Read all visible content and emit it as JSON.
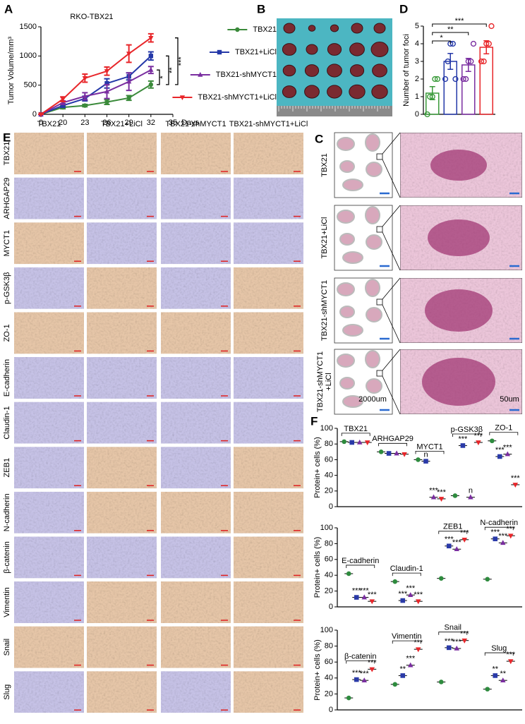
{
  "panel_labels": {
    "a": "A",
    "b": "B",
    "c": "C",
    "d": "D",
    "e": "E",
    "f": "F"
  },
  "chart_data": [
    {
      "type": "line",
      "title": "RKO-TBX21",
      "ylabel": "Tumor Volume/mm³",
      "xlabel": "Days",
      "x": [
        0,
        20,
        23,
        26,
        29,
        32
      ],
      "xlim": [
        0,
        35
      ],
      "xticks": [
        0,
        20,
        23,
        26,
        29,
        32,
        35
      ],
      "ylim": [
        0,
        1500
      ],
      "yticks": [
        0,
        500,
        1000,
        1500
      ],
      "series": [
        {
          "name": "TBX21",
          "color": "#3a8a3a",
          "marker": "circle",
          "values": [
            0,
            120,
            150,
            210,
            280,
            510
          ],
          "errors": [
            0,
            25,
            20,
            40,
            40,
            60
          ]
        },
        {
          "name": "TBX21+LiCl",
          "color": "#2438a8",
          "marker": "square",
          "values": [
            0,
            150,
            270,
            530,
            650,
            1000
          ],
          "errors": [
            0,
            30,
            40,
            80,
            60,
            70
          ]
        },
        {
          "name": "TBX21-shMYCT1",
          "color": "#7a2ea0",
          "marker": "triangle",
          "values": [
            0,
            200,
            310,
            390,
            560,
            760
          ],
          "errors": [
            0,
            30,
            60,
            120,
            150,
            60
          ]
        },
        {
          "name": "TBX21-shMYCT1+LiCl",
          "color": "#e8262a",
          "marker": "triangle-down",
          "values": [
            0,
            260,
            620,
            740,
            1040,
            1310
          ],
          "errors": [
            0,
            40,
            70,
            70,
            150,
            70
          ]
        }
      ],
      "annotations": [
        "*",
        "**",
        "***"
      ]
    },
    {
      "type": "bar",
      "ylabel": "Number of tumor foci",
      "ylim": [
        0,
        5
      ],
      "yticks": [
        0,
        1,
        2,
        3,
        4,
        5
      ],
      "categories": [
        null,
        null,
        null,
        null
      ],
      "values": [
        1.2,
        3.0,
        2.8,
        3.8
      ],
      "errors": [
        0.37,
        0.45,
        0.37,
        0.37
      ],
      "colors": [
        "#3a9a3a",
        "#2438a8",
        "#7a2ea0",
        "#e8262a"
      ],
      "points": [
        [
          0,
          1,
          1,
          2,
          2
        ],
        [
          2,
          3,
          4,
          4,
          2
        ],
        [
          2,
          2,
          3,
          3,
          4
        ],
        [
          3,
          3,
          4,
          4,
          5
        ]
      ],
      "annotations": [
        "*",
        "**",
        "***"
      ]
    },
    {
      "type": "dot",
      "ylabel": "Protein+ cells (%)",
      "ylim": [
        0,
        100
      ],
      "yticks": [
        0,
        20,
        40,
        60,
        80,
        100
      ],
      "categories": [
        "TBX21",
        "ARHGAP29",
        "MYCT1",
        "p-GSK3β",
        "ZO-1"
      ],
      "series": [
        {
          "color": "#2e8b3e",
          "marker": "circle",
          "values": [
            83,
            70,
            60,
            14,
            84
          ],
          "annotations": [
            null,
            null,
            null,
            null,
            null
          ]
        },
        {
          "color": "#2a3aa8",
          "marker": "square",
          "values": [
            82,
            68,
            58,
            78,
            64
          ],
          "annotations": [
            null,
            null,
            "n",
            "***",
            "***"
          ]
        },
        {
          "color": "#7a2ea0",
          "marker": "triangle",
          "values": [
            82,
            68,
            12,
            12,
            67
          ],
          "annotations": [
            null,
            null,
            "***",
            "n",
            "***"
          ]
        },
        {
          "color": "#e8262a",
          "marker": "triangle-down",
          "values": [
            82,
            67,
            10,
            82,
            28
          ],
          "annotations": [
            null,
            null,
            "***",
            "***",
            "***"
          ]
        }
      ]
    },
    {
      "type": "dot",
      "ylabel": "Protein+ cells (%)",
      "ylim": [
        0,
        100
      ],
      "yticks": [
        0,
        20,
        40,
        60,
        80,
        100
      ],
      "categories": [
        "E-cadherin",
        "Claudin-1",
        "ZEB1",
        "N-cadherin"
      ],
      "series": [
        {
          "color": "#2e8b3e",
          "marker": "circle",
          "values": [
            42,
            32,
            36,
            35
          ],
          "annotations": [
            null,
            null,
            null,
            null
          ]
        },
        {
          "color": "#2a3aa8",
          "marker": "square",
          "values": [
            12,
            8,
            77,
            86
          ],
          "annotations": [
            "***",
            "***",
            "***",
            "***"
          ]
        },
        {
          "color": "#7a2ea0",
          "marker": "triangle",
          "values": [
            12,
            15,
            73,
            81
          ],
          "annotations": [
            "***",
            "***",
            "***",
            "***"
          ]
        },
        {
          "color": "#e8262a",
          "marker": "triangle-down",
          "values": [
            7,
            7,
            85,
            90
          ],
          "annotations": [
            "***",
            "***",
            "***",
            "***"
          ]
        }
      ]
    },
    {
      "type": "dot",
      "ylabel": "Protein+ cells (%)",
      "ylim": [
        0,
        100
      ],
      "yticks": [
        0,
        20,
        40,
        60,
        80,
        100
      ],
      "categories": [
        "β-catenin",
        "Vimentin",
        "Snail",
        "Slug"
      ],
      "series": [
        {
          "color": "#2e8b3e",
          "marker": "circle",
          "values": [
            15,
            32,
            35,
            26
          ],
          "annotations": [
            null,
            null,
            null,
            null
          ]
        },
        {
          "color": "#2a3aa8",
          "marker": "square",
          "values": [
            38,
            43,
            78,
            43
          ],
          "annotations": [
            "***",
            "**",
            "***",
            "**"
          ]
        },
        {
          "color": "#7a2ea0",
          "marker": "triangle",
          "values": [
            37,
            56,
            77,
            37
          ],
          "annotations": [
            "***",
            "***",
            "***",
            "**"
          ]
        },
        {
          "color": "#e8262a",
          "marker": "triangle-down",
          "values": [
            51,
            76,
            87,
            61
          ],
          "annotations": [
            "***",
            "***",
            "***",
            "***"
          ]
        }
      ]
    }
  ],
  "panel_c": {
    "rows": [
      [
        "TBX21"
      ],
      [
        "TBX21+LiCl"
      ],
      [
        "TBX21-shMYCT1"
      ],
      [
        "TBX21-shMYCT1",
        "+LiCl"
      ]
    ],
    "scale_labels": [
      "2000um",
      "50um"
    ]
  },
  "panel_e": {
    "columns": [
      "TBX21",
      "TBX21+LiCl",
      "TBX21-shMYCT1",
      "TBX21-shMYCT1+LiCl"
    ],
    "rows": [
      "TBX21",
      "ARHGAP29",
      "MYCT1",
      "p-GSK3β",
      "ZO-1",
      "E-cadherin",
      "Claudin-1",
      "ZEB1",
      "N-cadherin",
      "β-catenin",
      "Vimentin",
      "Snail",
      "Slug"
    ]
  }
}
